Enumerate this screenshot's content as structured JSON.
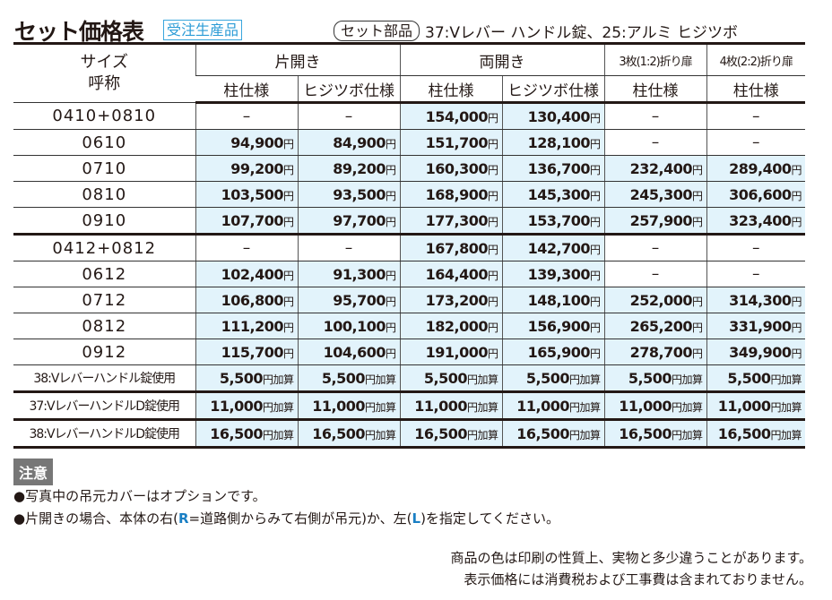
{
  "title": "セット価格表",
  "badge": "受注生産品",
  "set_parts": {
    "label": "セット部品",
    "value": "37:Vレバー ハンドル錠、25:アルミ ヒジツボ"
  },
  "header": {
    "size": "サイズ呼称",
    "groups": [
      "片開き",
      "両開き",
      "3枚(1:2)折り扉",
      "4枚(2:2)折り扉"
    ],
    "sub": [
      "柱仕様",
      "ヒジツボ仕様",
      "柱仕様",
      "ヒジツボ仕様",
      "柱仕様",
      "柱仕様"
    ]
  },
  "currency_unit": "円",
  "rows": [
    {
      "size": "0410+0810",
      "prices": [
        "–",
        "–",
        "154,000",
        "130,400",
        "–",
        "–"
      ]
    },
    {
      "size": "0610",
      "prices": [
        "94,900",
        "84,900",
        "151,700",
        "128,100",
        "–",
        "–"
      ]
    },
    {
      "size": "0710",
      "prices": [
        "99,200",
        "89,200",
        "160,300",
        "136,700",
        "232,400",
        "289,400"
      ]
    },
    {
      "size": "0810",
      "prices": [
        "103,500",
        "93,500",
        "168,900",
        "145,300",
        "245,300",
        "306,600"
      ]
    },
    {
      "size": "0910",
      "prices": [
        "107,700",
        "97,700",
        "177,300",
        "153,700",
        "257,900",
        "323,400"
      ]
    },
    {
      "size": "0412+0812",
      "prices": [
        "–",
        "–",
        "167,800",
        "142,700",
        "–",
        "–"
      ]
    },
    {
      "size": "0612",
      "prices": [
        "102,400",
        "91,300",
        "164,400",
        "139,300",
        "–",
        "–"
      ]
    },
    {
      "size": "0712",
      "prices": [
        "106,800",
        "95,700",
        "173,200",
        "148,100",
        "252,000",
        "314,300"
      ]
    },
    {
      "size": "0812",
      "prices": [
        "111,200",
        "100,100",
        "182,000",
        "156,900",
        "265,200",
        "331,900"
      ]
    },
    {
      "size": "0912",
      "prices": [
        "115,700",
        "104,600",
        "191,000",
        "165,900",
        "278,700",
        "349,900"
      ]
    }
  ],
  "options_unit": "円加算",
  "options": [
    {
      "label": "38:Vレバーハンドル錠使用",
      "price": "5,500"
    },
    {
      "label": "37:VレバーハンドルD錠使用",
      "price": "11,000"
    },
    {
      "label": "38:VレバーハンドルD錠使用",
      "price": "16,500"
    }
  ],
  "notes_heading": "注意",
  "notes": {
    "n1": "●写真中の吊元カバーはオプションです。",
    "n2a": "●片開きの場合、本体の右(",
    "n2R": "R",
    "n2b": "=道路側からみて右側が吊元)か、左(",
    "n2L": "L",
    "n2c": ")を指定してください。"
  },
  "disclaimers": [
    "商品の色は印刷の性質上、実物と多少違うことがあります。",
    "表示価格には消費税および工事費は含まれておりません。"
  ]
}
